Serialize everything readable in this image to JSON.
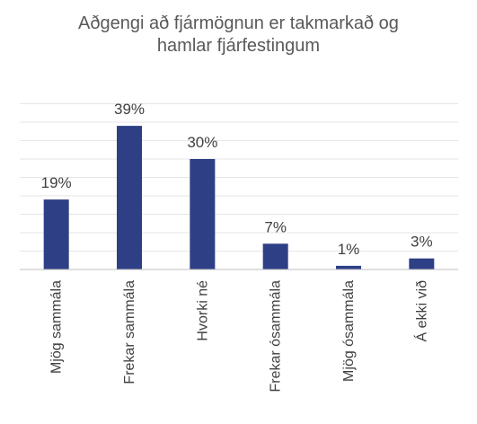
{
  "chart_data": {
    "type": "bar",
    "title": "Aðgengi að fjármögnun er takmarkað og hamlar fjárfestingum",
    "title_lines": [
      "Aðgengi að fjármögnun er takmarkað og",
      "hamlar fjárfestingum"
    ],
    "categories": [
      "Mjög sammála",
      "Frekar sammála",
      "Hvorki né",
      "Frekar ósammála",
      "Mjög ósammála",
      "Á ekki við"
    ],
    "values": [
      19,
      39,
      30,
      7,
      1,
      3
    ],
    "data_labels": [
      "19%",
      "39%",
      "30%",
      "7%",
      "1%",
      "3%"
    ],
    "unit": "%",
    "ylim": [
      0,
      45
    ],
    "grid": true,
    "legend": "none",
    "bar_color": "#2e3f86",
    "grid_color": "#e6e6e6",
    "axis_color": "#bfbfbf"
  }
}
